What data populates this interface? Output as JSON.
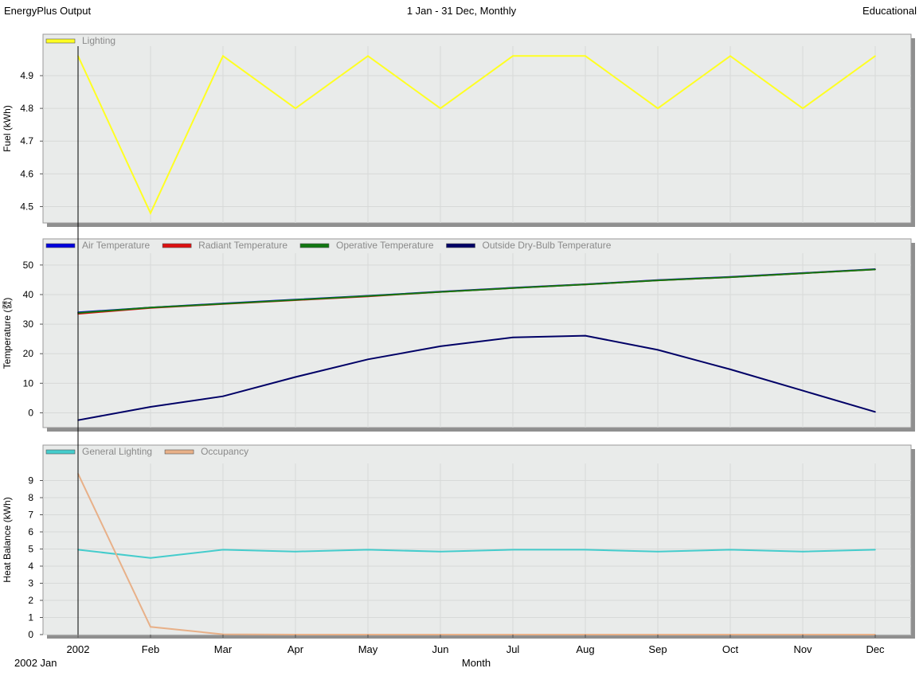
{
  "header": {
    "left": "EnergyPlus Output",
    "center": "1 Jan - 31 Dec, Monthly",
    "right": "Educational"
  },
  "footer": {
    "start_label": "2002 Jan",
    "x_axis_label": "Month"
  },
  "colors": {
    "panel_bg": "#e9ebea",
    "grid": "#d7d9d8",
    "shadow": "#8f8f8f",
    "lighting": "#ffff22",
    "air_temperature": "#0000dd",
    "radiant_temperature": "#dd1111",
    "operative_temperature": "#117711",
    "outside_drybulb": "#000066",
    "general_lighting": "#44cccc",
    "occupancy": "#e8b088"
  },
  "chart_data": [
    {
      "type": "line",
      "id": "fuel",
      "ylabel": "Fuel (kWh)",
      "ylim": [
        4.45,
        4.99
      ],
      "yticks": [
        "4.5",
        "4.6",
        "4.7",
        "4.8",
        "4.9"
      ],
      "x": [
        "2002",
        "Feb",
        "Mar",
        "Apr",
        "May",
        "Jun",
        "Jul",
        "Aug",
        "Sep",
        "Oct",
        "Nov",
        "Dec"
      ],
      "grid": true,
      "legend_position": "top-left",
      "series": [
        {
          "name": "Lighting",
          "color": "#ffff22",
          "values": [
            4.96,
            4.48,
            4.96,
            4.8,
            4.96,
            4.8,
            4.96,
            4.96,
            4.8,
            4.96,
            4.8,
            4.96
          ]
        }
      ]
    },
    {
      "type": "line",
      "id": "temperature",
      "ylabel": "Temperature (캜)",
      "ylim": [
        -5,
        54
      ],
      "yticks": [
        "0",
        "10",
        "20",
        "30",
        "40",
        "50"
      ],
      "x": [
        "2002",
        "Feb",
        "Mar",
        "Apr",
        "May",
        "Jun",
        "Jul",
        "Aug",
        "Sep",
        "Oct",
        "Nov",
        "Dec"
      ],
      "grid": true,
      "legend_position": "top-left",
      "series": [
        {
          "name": "Air Temperature",
          "color": "#0000dd",
          "values": [
            34.0,
            35.6,
            37.0,
            38.3,
            39.6,
            41.0,
            42.3,
            43.5,
            44.9,
            46.0,
            47.3,
            48.6
          ]
        },
        {
          "name": "Radiant Temperature",
          "color": "#dd1111",
          "values": [
            33.5,
            35.5,
            36.8,
            38.1,
            39.4,
            40.9,
            42.2,
            43.4,
            44.8,
            45.9,
            47.2,
            48.5
          ]
        },
        {
          "name": "Operative Temperature",
          "color": "#117711",
          "values": [
            33.8,
            35.6,
            36.9,
            38.2,
            39.5,
            40.9,
            42.2,
            43.4,
            44.8,
            45.9,
            47.2,
            48.5
          ]
        },
        {
          "name": "Outside Dry-Bulb Temperature",
          "color": "#000066",
          "values": [
            -2.5,
            2.0,
            5.6,
            12.1,
            18.1,
            22.5,
            25.5,
            26.1,
            21.3,
            14.7,
            7.5,
            0.3
          ]
        }
      ]
    },
    {
      "type": "line",
      "id": "heat_balance",
      "ylabel": "Heat Balance (kWh)",
      "ylim": [
        0,
        10
      ],
      "yticks": [
        "0",
        "1",
        "2",
        "3",
        "4",
        "5",
        "6",
        "7",
        "8",
        "9"
      ],
      "x": [
        "2002",
        "Feb",
        "Mar",
        "Apr",
        "May",
        "Jun",
        "Jul",
        "Aug",
        "Sep",
        "Oct",
        "Nov",
        "Dec"
      ],
      "grid": true,
      "legend_position": "top-left",
      "series": [
        {
          "name": "General Lighting",
          "color": "#44cccc",
          "values": [
            4.96,
            4.48,
            4.96,
            4.85,
            4.96,
            4.85,
            4.96,
            4.96,
            4.85,
            4.96,
            4.85,
            4.96
          ]
        },
        {
          "name": "Occupancy",
          "color": "#e8b088",
          "values": [
            9.4,
            0.45,
            0.02,
            0.0,
            0.0,
            0.0,
            0.0,
            0.0,
            0.0,
            0.0,
            0.0,
            0.0
          ]
        }
      ]
    }
  ]
}
